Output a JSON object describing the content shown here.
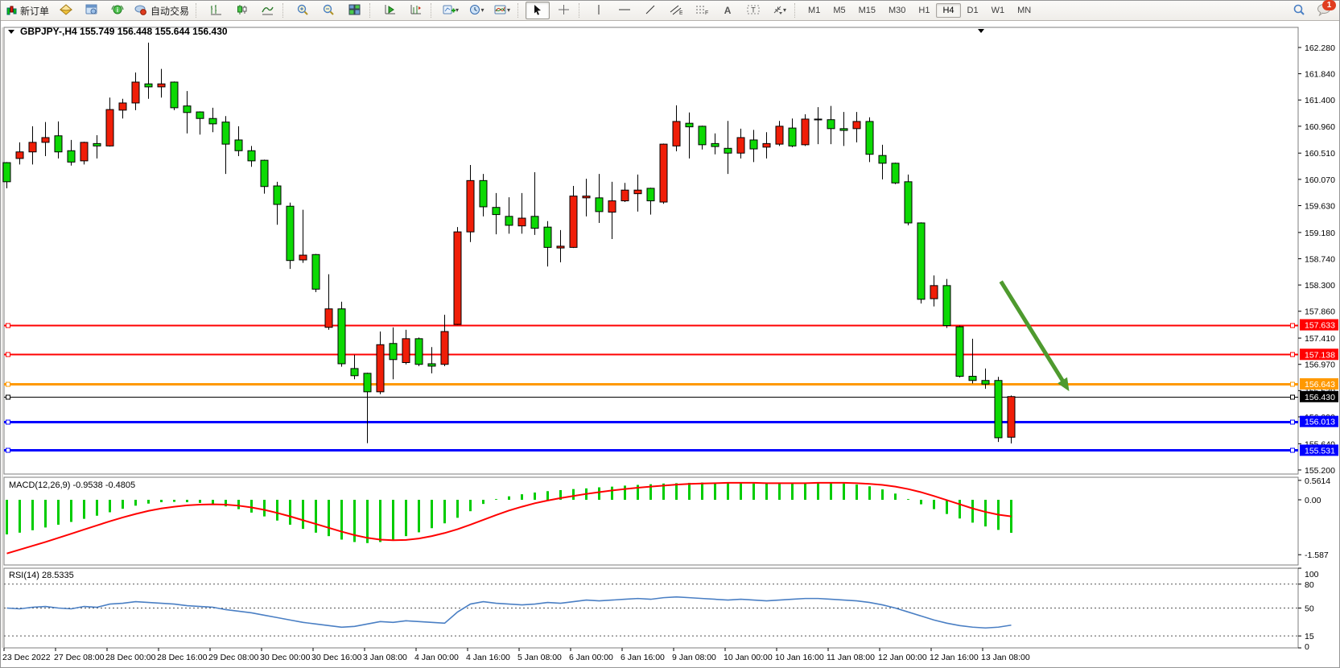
{
  "toolbar": {
    "new_order_label": "新订单",
    "autotrading_label": "自动交易",
    "timeframes": [
      "M1",
      "M5",
      "M15",
      "M30",
      "H1",
      "H4",
      "D1",
      "W1",
      "MN"
    ],
    "active_timeframe": "H4",
    "notification_badge": "1",
    "icon_names": [
      "new-order",
      "quotes",
      "market-watch",
      "news",
      "autotrading",
      "bar-chart",
      "candle-chart",
      "line-chart",
      "zoom-in",
      "zoom-out",
      "tile-windows",
      "auto-scroll",
      "chart-shift",
      "indicators-add",
      "periods",
      "templates",
      "cursor",
      "crosshair",
      "vertical-line",
      "horizontal-line",
      "trendline",
      "equidistant-channel",
      "fibonacci",
      "text",
      "text-label",
      "arrows",
      "search",
      "chat"
    ]
  },
  "chart_data": {
    "type": "candlestick",
    "symbol": "GBPJPY-",
    "timeframe": "H4",
    "title": "GBPJPY-,H4  155.749 156.448 155.644 156.430",
    "ohlc_display": {
      "open": "155.749",
      "high": "156.448",
      "low": "155.644",
      "close": "156.430"
    },
    "colors": {
      "bull": "#f01e08",
      "bear": "#0cd903",
      "wick": "#000000",
      "macd_hist": "#00cc00",
      "macd_signal": "#ff0000",
      "rsi_line": "#4a7fc4",
      "arrow": "#4e9a2e"
    },
    "price_axis": {
      "ylim": [
        155.132,
        162.617
      ],
      "ticks": [
        "162.280",
        "161.840",
        "161.400",
        "160.960",
        "160.510",
        "160.070",
        "159.630",
        "159.180",
        "158.740",
        "158.300",
        "157.860",
        "157.410",
        "156.970",
        "156.530",
        "156.090",
        "155.640",
        "155.200"
      ]
    },
    "time_labels": [
      "23 Dec 2022",
      "27 Dec 08:00",
      "28 Dec 00:00",
      "28 Dec 16:00",
      "29 Dec 08:00",
      "30 Dec 00:00",
      "30 Dec 16:00",
      "3 Jan 08:00",
      "4 Jan 00:00",
      "4 Jan 16:00",
      "5 Jan 08:00",
      "6 Jan 00:00",
      "6 Jan 16:00",
      "9 Jan 08:00",
      "10 Jan 00:00",
      "10 Jan 16:00",
      "11 Jan 08:00",
      "12 Jan 00:00",
      "12 Jan 16:00",
      "13 Jan 08:00"
    ],
    "hlines": [
      {
        "price": 157.633,
        "label": "157.633",
        "color": "#ff0000",
        "width": 2
      },
      {
        "price": 157.138,
        "label": "157.138",
        "color": "#ff0000",
        "width": 2
      },
      {
        "price": 156.643,
        "label": "156.643",
        "color": "#ff9900",
        "width": 3
      },
      {
        "price": 156.43,
        "label": "156.430",
        "color": "#000000",
        "width": 1,
        "current": true
      },
      {
        "price": 156.013,
        "label": "156.013",
        "color": "#0000ff",
        "width": 3
      },
      {
        "price": 155.531,
        "label": "155.531",
        "color": "#0000ff",
        "width": 3
      }
    ],
    "candles": [
      [
        160.35,
        160.36,
        159.92,
        160.03
      ],
      [
        160.42,
        160.69,
        160.32,
        160.53
      ],
      [
        160.53,
        160.96,
        160.32,
        160.69
      ],
      [
        160.69,
        161.03,
        160.46,
        160.77
      ],
      [
        160.8,
        161.04,
        160.42,
        160.53
      ],
      [
        160.55,
        160.73,
        160.3,
        160.36
      ],
      [
        160.38,
        160.7,
        160.32,
        160.69
      ],
      [
        160.67,
        160.81,
        160.42,
        160.63
      ],
      [
        160.63,
        161.44,
        160.62,
        161.24
      ],
      [
        161.23,
        161.42,
        161.09,
        161.35
      ],
      [
        161.35,
        161.86,
        161.23,
        161.7
      ],
      [
        161.67,
        162.36,
        161.42,
        161.62
      ],
      [
        161.62,
        161.92,
        161.44,
        161.67
      ],
      [
        161.7,
        161.71,
        161.23,
        161.27
      ],
      [
        161.3,
        161.55,
        160.84,
        161.19
      ],
      [
        161.2,
        161.21,
        160.82,
        161.09
      ],
      [
        161.09,
        161.27,
        160.86,
        161.0
      ],
      [
        161.03,
        161.13,
        160.16,
        160.66
      ],
      [
        160.73,
        160.96,
        160.46,
        160.55
      ],
      [
        160.55,
        160.63,
        160.28,
        160.38
      ],
      [
        160.39,
        160.4,
        159.83,
        159.95
      ],
      [
        159.96,
        160.03,
        159.31,
        159.65
      ],
      [
        159.62,
        159.68,
        158.57,
        158.71
      ],
      [
        158.72,
        159.56,
        158.67,
        158.8
      ],
      [
        158.81,
        158.82,
        158.18,
        158.23
      ],
      [
        157.59,
        158.48,
        157.55,
        157.9
      ],
      [
        157.9,
        158.02,
        156.93,
        156.98
      ],
      [
        156.9,
        157.13,
        156.72,
        156.78
      ],
      [
        156.82,
        156.83,
        155.65,
        156.51
      ],
      [
        156.51,
        157.52,
        156.47,
        157.3
      ],
      [
        157.32,
        157.59,
        156.72,
        157.05
      ],
      [
        157.0,
        157.55,
        156.97,
        157.4
      ],
      [
        157.4,
        157.42,
        156.94,
        156.97
      ],
      [
        156.98,
        157.26,
        156.82,
        156.94
      ],
      [
        156.97,
        157.8,
        156.94,
        157.52
      ],
      [
        157.64,
        159.27,
        157.63,
        159.19
      ],
      [
        159.19,
        160.31,
        159.02,
        160.05
      ],
      [
        160.05,
        160.16,
        159.45,
        159.61
      ],
      [
        159.6,
        159.84,
        159.15,
        159.48
      ],
      [
        159.45,
        159.77,
        159.16,
        159.3
      ],
      [
        159.29,
        159.84,
        159.16,
        159.42
      ],
      [
        159.45,
        160.19,
        159.14,
        159.25
      ],
      [
        159.27,
        159.37,
        158.61,
        158.93
      ],
      [
        158.92,
        159.22,
        158.68,
        158.95
      ],
      [
        158.93,
        159.96,
        158.92,
        159.79
      ],
      [
        159.76,
        160.08,
        159.45,
        159.79
      ],
      [
        159.76,
        160.16,
        159.34,
        159.53
      ],
      [
        159.52,
        160.03,
        159.07,
        159.71
      ],
      [
        159.71,
        160.01,
        159.69,
        159.89
      ],
      [
        159.83,
        160.15,
        159.53,
        159.89
      ],
      [
        159.92,
        159.93,
        159.48,
        159.71
      ],
      [
        159.69,
        160.67,
        159.66,
        160.66
      ],
      [
        160.63,
        161.31,
        160.54,
        161.04
      ],
      [
        161.01,
        161.19,
        160.42,
        160.95
      ],
      [
        160.96,
        160.97,
        160.57,
        160.65
      ],
      [
        160.67,
        160.84,
        160.49,
        160.62
      ],
      [
        160.59,
        161.05,
        160.16,
        160.51
      ],
      [
        160.51,
        160.92,
        160.42,
        160.77
      ],
      [
        160.73,
        160.9,
        160.36,
        160.58
      ],
      [
        160.61,
        160.86,
        160.42,
        160.67
      ],
      [
        160.66,
        161.05,
        160.63,
        160.96
      ],
      [
        160.93,
        161.09,
        160.61,
        160.63
      ],
      [
        160.65,
        161.16,
        160.63,
        161.08
      ],
      [
        161.07,
        161.28,
        160.66,
        161.08
      ],
      [
        161.07,
        161.3,
        160.66,
        160.92
      ],
      [
        160.92,
        161.2,
        160.63,
        160.89
      ],
      [
        160.92,
        161.2,
        160.69,
        161.04
      ],
      [
        161.04,
        161.11,
        160.36,
        160.49
      ],
      [
        160.47,
        160.65,
        160.07,
        160.34
      ],
      [
        160.34,
        160.35,
        159.99,
        160.01
      ],
      [
        160.03,
        160.15,
        159.3,
        159.34
      ],
      [
        159.34,
        159.35,
        157.99,
        158.06
      ],
      [
        158.07,
        158.46,
        157.94,
        158.29
      ],
      [
        158.29,
        158.4,
        157.58,
        157.62
      ],
      [
        157.6,
        157.62,
        156.75,
        156.77
      ],
      [
        156.77,
        157.4,
        156.65,
        156.7
      ],
      [
        156.7,
        156.9,
        156.56,
        156.64
      ],
      [
        156.7,
        156.76,
        155.67,
        155.74
      ],
      [
        155.749,
        156.448,
        155.644,
        156.43
      ]
    ],
    "indicators": {
      "macd": {
        "label": "MACD(12,26,9) -0.9538 -0.4805",
        "params": "12,26,9",
        "value_main": "-0.9538",
        "value_signal": "-0.4805",
        "axis_ticks": [
          "0.5614",
          "0.00",
          "-1.587"
        ],
        "ylim": [
          -1.76,
          0.65
        ],
        "histogram": [
          -1.0,
          -0.95,
          -0.88,
          -0.8,
          -0.72,
          -0.64,
          -0.55,
          -0.46,
          -0.36,
          -0.26,
          -0.17,
          -0.11,
          -0.07,
          -0.06,
          -0.07,
          -0.09,
          -0.13,
          -0.19,
          -0.27,
          -0.37,
          -0.48,
          -0.6,
          -0.72,
          -0.84,
          -0.95,
          -1.05,
          -1.15,
          -1.22,
          -1.25,
          -1.22,
          -1.15,
          -1.05,
          -0.94,
          -0.82,
          -0.68,
          -0.52,
          -0.33,
          -0.12,
          0.02,
          0.1,
          0.16,
          0.21,
          0.25,
          0.28,
          0.31,
          0.33,
          0.36,
          0.38,
          0.41,
          0.43,
          0.45,
          0.47,
          0.48,
          0.49,
          0.5,
          0.5,
          0.49,
          0.48,
          0.47,
          0.47,
          0.48,
          0.49,
          0.5,
          0.5,
          0.49,
          0.47,
          0.44,
          0.39,
          0.3,
          0.18,
          0.02,
          -0.13,
          -0.27,
          -0.41,
          -0.54,
          -0.66,
          -0.77,
          -0.87,
          -0.9538
        ],
        "signal": [
          -1.55,
          -1.44,
          -1.33,
          -1.22,
          -1.1,
          -0.98,
          -0.86,
          -0.74,
          -0.62,
          -0.51,
          -0.41,
          -0.32,
          -0.25,
          -0.2,
          -0.16,
          -0.14,
          -0.13,
          -0.14,
          -0.17,
          -0.22,
          -0.29,
          -0.38,
          -0.48,
          -0.59,
          -0.7,
          -0.81,
          -0.92,
          -1.02,
          -1.1,
          -1.15,
          -1.17,
          -1.16,
          -1.12,
          -1.05,
          -0.96,
          -0.85,
          -0.72,
          -0.58,
          -0.44,
          -0.31,
          -0.2,
          -0.1,
          -0.02,
          0.05,
          0.11,
          0.17,
          0.22,
          0.27,
          0.31,
          0.35,
          0.38,
          0.41,
          0.44,
          0.46,
          0.47,
          0.48,
          0.49,
          0.49,
          0.49,
          0.48,
          0.48,
          0.48,
          0.48,
          0.49,
          0.49,
          0.49,
          0.48,
          0.46,
          0.43,
          0.38,
          0.31,
          0.22,
          0.11,
          -0.01,
          -0.13,
          -0.25,
          -0.35,
          -0.43,
          -0.4805
        ]
      },
      "rsi": {
        "label": "RSI(14) 28.5335",
        "params": "14",
        "value": "28.5335",
        "axis_ticks": [
          "100",
          "80",
          "50",
          "15",
          "0"
        ],
        "levels": [
          80,
          50,
          15
        ],
        "ylim": [
          0,
          100
        ],
        "values": [
          50,
          49,
          51,
          52,
          50,
          49,
          52,
          51,
          55,
          56,
          58,
          57,
          56,
          55,
          53,
          52,
          51,
          48,
          46,
          44,
          41,
          38,
          35,
          32,
          30,
          28,
          26,
          27,
          30,
          33,
          32,
          34,
          33,
          32,
          31,
          45,
          55,
          58,
          56,
          55,
          54,
          55,
          57,
          56,
          58,
          60,
          59,
          60,
          61,
          62,
          61,
          63,
          64,
          63,
          62,
          61,
          60,
          61,
          60,
          59,
          60,
          61,
          62,
          62,
          61,
          60,
          59,
          57,
          54,
          50,
          45,
          40,
          35,
          31,
          28,
          26,
          25,
          26,
          28.5335
        ]
      }
    },
    "annotation_arrow": {
      "from_index": 77.2,
      "from_price": 158.36,
      "to_index": 82.5,
      "to_price": 156.52
    }
  }
}
